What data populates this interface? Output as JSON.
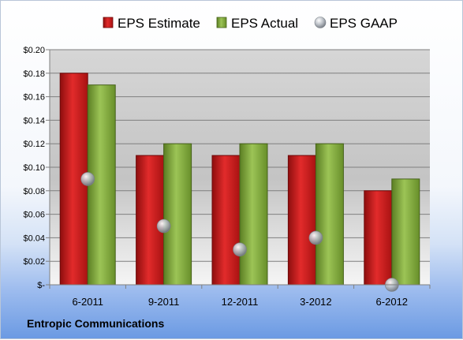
{
  "chart_data": {
    "type": "bar",
    "categories": [
      "6-2011",
      "9-2011",
      "12-2011",
      "3-2012",
      "6-2012"
    ],
    "series": [
      {
        "name": "EPS Estimate",
        "kind": "bar",
        "color": "#c81e1e",
        "values": [
          0.18,
          0.11,
          0.11,
          0.11,
          0.08
        ]
      },
      {
        "name": "EPS Actual",
        "kind": "bar",
        "color": "#7ea83a",
        "values": [
          0.17,
          0.12,
          0.12,
          0.12,
          0.09
        ]
      },
      {
        "name": "EPS GAAP",
        "kind": "marker",
        "color": "#a0a6ae",
        "values": [
          0.09,
          0.05,
          0.03,
          0.04,
          0.0
        ]
      }
    ],
    "yticks": [
      "$-",
      "$0.02",
      "$0.04",
      "$0.06",
      "$0.08",
      "$0.10",
      "$0.12",
      "$0.14",
      "$0.16",
      "$0.18",
      "$0.20"
    ],
    "ylim": [
      0,
      0.2
    ],
    "grid": true,
    "legend_position": "top"
  },
  "footer": {
    "company": "Entropic Communications"
  }
}
